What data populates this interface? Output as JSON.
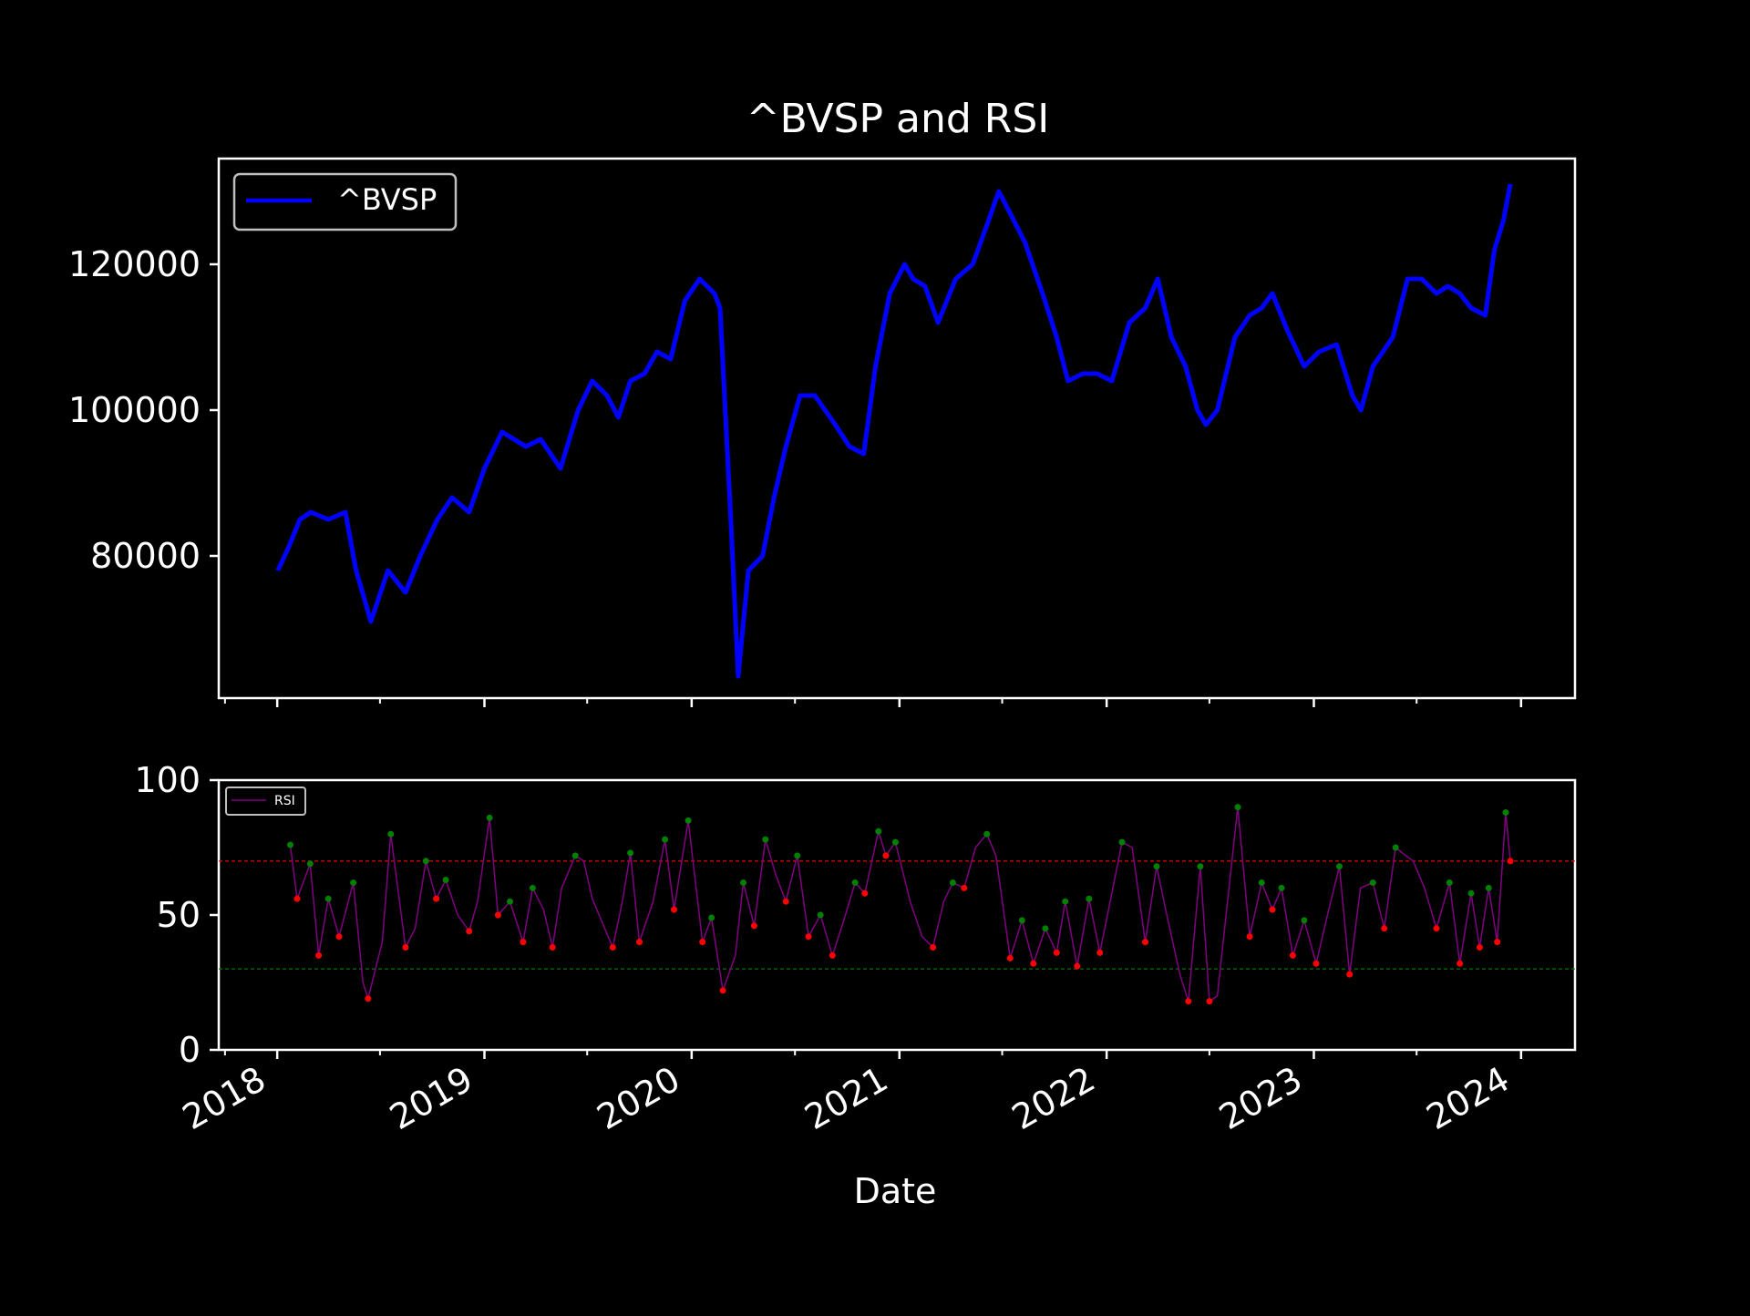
{
  "chart_data": [
    {
      "type": "line",
      "title": "^BVSP and RSI",
      "xlabel": "",
      "ylabel": "",
      "xlim": [
        "2017-09-20",
        "2024-04-05"
      ],
      "ylim": [
        60500,
        134500
      ],
      "yticks": [
        80000,
        100000,
        120000
      ],
      "xticks": [
        "2018",
        "2019",
        "2020",
        "2021",
        "2022",
        "2023",
        "2024"
      ],
      "tick_labels_visible_x": false,
      "legend": {
        "placement": "top-left",
        "entries": [
          "^BVSP"
        ]
      },
      "grid": false,
      "colors": {
        "series": "#0000ff",
        "background": "#000000",
        "foreground": "#ffffff"
      },
      "series": [
        {
          "name": "^BVSP",
          "x": [
            "2018-01-02",
            "2018-01-20",
            "2018-02-10",
            "2018-03-01",
            "2018-04-01",
            "2018-05-01",
            "2018-05-20",
            "2018-06-15",
            "2018-07-15",
            "2018-08-15",
            "2018-09-10",
            "2018-10-10",
            "2018-11-05",
            "2018-12-05",
            "2019-01-01",
            "2019-02-01",
            "2019-03-15",
            "2019-04-10",
            "2019-05-15",
            "2019-06-15",
            "2019-07-10",
            "2019-08-05",
            "2019-08-25",
            "2019-09-15",
            "2019-10-10",
            "2019-11-01",
            "2019-11-25",
            "2019-12-20",
            "2020-01-15",
            "2020-02-10",
            "2020-02-20",
            "2020-03-10",
            "2020-03-23",
            "2020-04-10",
            "2020-05-05",
            "2020-05-25",
            "2020-06-15",
            "2020-07-10",
            "2020-08-05",
            "2020-09-10",
            "2020-10-05",
            "2020-10-30",
            "2020-11-20",
            "2020-12-15",
            "2021-01-10",
            "2021-01-25",
            "2021-02-15",
            "2021-03-10",
            "2021-04-10",
            "2021-05-10",
            "2021-06-07",
            "2021-06-25",
            "2021-07-15",
            "2021-08-10",
            "2021-09-10",
            "2021-10-05",
            "2021-10-25",
            "2021-11-20",
            "2021-12-15",
            "2022-01-10",
            "2022-02-10",
            "2022-03-10",
            "2022-04-01",
            "2022-04-25",
            "2022-05-20",
            "2022-06-10",
            "2022-06-25",
            "2022-07-15",
            "2022-08-15",
            "2022-09-10",
            "2022-10-01",
            "2022-10-20",
            "2022-11-15",
            "2022-12-15",
            "2023-01-10",
            "2023-02-10",
            "2023-03-10",
            "2023-03-25",
            "2023-04-15",
            "2023-05-20",
            "2023-06-15",
            "2023-07-10",
            "2023-08-05",
            "2023-08-25",
            "2023-09-15",
            "2023-10-05",
            "2023-10-30",
            "2023-11-15",
            "2023-12-01",
            "2023-12-13"
          ],
          "values": [
            78000,
            81000,
            85000,
            86000,
            85000,
            86000,
            78000,
            71000,
            78000,
            75000,
            80000,
            85000,
            88000,
            86000,
            92000,
            97000,
            95000,
            96000,
            92000,
            100000,
            104000,
            102000,
            99000,
            104000,
            105000,
            108000,
            107000,
            115000,
            118000,
            116000,
            114000,
            85000,
            63500,
            78000,
            80000,
            88000,
            95000,
            102000,
            102000,
            98000,
            95000,
            94000,
            106000,
            116000,
            120000,
            118000,
            117000,
            112000,
            118000,
            120000,
            126000,
            130000,
            127000,
            123000,
            116000,
            110000,
            104000,
            105000,
            105000,
            104000,
            112000,
            114000,
            118000,
            110000,
            106000,
            100000,
            98000,
            100000,
            110000,
            113000,
            114000,
            116000,
            111000,
            106000,
            108000,
            109000,
            102000,
            100000,
            106000,
            110000,
            118000,
            118000,
            116000,
            117000,
            116000,
            114000,
            113000,
            122000,
            126000,
            131000
          ]
        }
      ]
    },
    {
      "type": "line",
      "title": "",
      "xlabel": "Date",
      "ylabel": "",
      "xlim": [
        "2017-09-20",
        "2024-04-05"
      ],
      "ylim": [
        0,
        100
      ],
      "yticks": [
        0,
        50,
        100
      ],
      "xticks": [
        "2018",
        "2019",
        "2020",
        "2021",
        "2022",
        "2023",
        "2024"
      ],
      "legend": {
        "placement": "top-left",
        "entries": [
          "RSI"
        ]
      },
      "grid": false,
      "reference_lines": [
        {
          "y": 70,
          "color": "#ff0000",
          "style": "dashed"
        },
        {
          "y": 30,
          "color": "#008000",
          "style": "dashed"
        }
      ],
      "colors": {
        "series": "#800080",
        "overbought_marker": "#008000",
        "oversold_marker": "#ff0000"
      },
      "series": [
        {
          "name": "RSI",
          "x": [
            "2018-01-24",
            "2018-02-05",
            "2018-02-28",
            "2018-03-15",
            "2018-04-01",
            "2018-04-20",
            "2018-05-15",
            "2018-06-01",
            "2018-06-10",
            "2018-07-05",
            "2018-07-20",
            "2018-08-15",
            "2018-09-01",
            "2018-09-20",
            "2018-10-08",
            "2018-10-25",
            "2018-11-15",
            "2018-12-05",
            "2018-12-20",
            "2019-01-10",
            "2019-01-25",
            "2019-02-15",
            "2019-03-10",
            "2019-03-27",
            "2019-04-15",
            "2019-05-01",
            "2019-05-17",
            "2019-06-10",
            "2019-06-25",
            "2019-07-10",
            "2019-08-01",
            "2019-08-15",
            "2019-09-01",
            "2019-09-15",
            "2019-10-01",
            "2019-10-25",
            "2019-11-15",
            "2019-12-01",
            "2019-12-26",
            "2020-01-20",
            "2020-02-05",
            "2020-02-25",
            "2020-03-18",
            "2020-04-01",
            "2020-04-20",
            "2020-05-10",
            "2020-05-28",
            "2020-06-15",
            "2020-07-05",
            "2020-07-25",
            "2020-08-15",
            "2020-09-05",
            "2020-09-25",
            "2020-10-15",
            "2020-11-01",
            "2020-11-25",
            "2020-12-08",
            "2020-12-25",
            "2021-01-20",
            "2021-02-10",
            "2021-03-01",
            "2021-03-20",
            "2021-04-05",
            "2021-04-25",
            "2021-05-15",
            "2021-06-04",
            "2021-06-20",
            "2021-07-15",
            "2021-08-05",
            "2021-08-25",
            "2021-09-15",
            "2021-10-05",
            "2021-10-20",
            "2021-11-10",
            "2021-12-01",
            "2021-12-20",
            "2022-01-10",
            "2022-01-28",
            "2022-02-15",
            "2022-03-10",
            "2022-03-30",
            "2022-04-15",
            "2022-05-10",
            "2022-05-25",
            "2022-06-15",
            "2022-07-01",
            "2022-07-15",
            "2022-08-02",
            "2022-08-20",
            "2022-09-10",
            "2022-10-01",
            "2022-10-20",
            "2022-11-05",
            "2022-11-25",
            "2022-12-15",
            "2023-01-05",
            "2023-01-25",
            "2023-02-15",
            "2023-03-05",
            "2023-03-24",
            "2023-04-15",
            "2023-05-05",
            "2023-05-25",
            "2023-06-12",
            "2023-06-25",
            "2023-07-15",
            "2023-08-05",
            "2023-08-28",
            "2023-09-15",
            "2023-10-05",
            "2023-10-20",
            "2023-11-05",
            "2023-11-20",
            "2023-12-05",
            "2023-12-13"
          ],
          "values": [
            76,
            56,
            69,
            35,
            56,
            42,
            62,
            25,
            19,
            40,
            80,
            38,
            45,
            70,
            56,
            63,
            50,
            44,
            55,
            86,
            50,
            55,
            40,
            60,
            52,
            38,
            60,
            72,
            70,
            56,
            45,
            38,
            55,
            73,
            40,
            55,
            78,
            52,
            85,
            40,
            49,
            22,
            35,
            62,
            46,
            78,
            65,
            55,
            72,
            42,
            50,
            35,
            48,
            62,
            58,
            81,
            72,
            77,
            55,
            42,
            38,
            55,
            62,
            60,
            75,
            80,
            72,
            34,
            48,
            32,
            45,
            36,
            55,
            31,
            56,
            36,
            58,
            77,
            75,
            40,
            68,
            52,
            28,
            18,
            68,
            18,
            20,
            55,
            90,
            42,
            62,
            52,
            60,
            35,
            48,
            32,
            50,
            68,
            28,
            60,
            62,
            45,
            75,
            72,
            70,
            60,
            45,
            62,
            32,
            58,
            38,
            60,
            40,
            88,
            70
          ]
        }
      ]
    }
  ]
}
